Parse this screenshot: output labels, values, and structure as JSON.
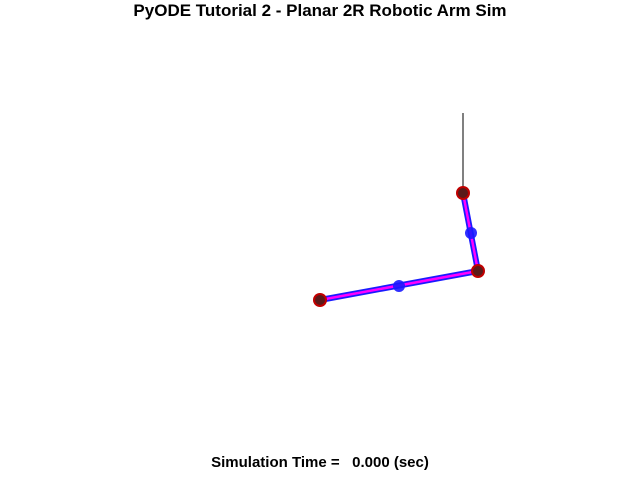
{
  "window": {
    "title": "PyODE Tutorial 2 - Planar 2R Robotic Arm Sim"
  },
  "status": {
    "time_label": "Simulation Time = ",
    "time_value": "  0.000",
    "time_unit": " (sec)"
  },
  "colors": {
    "background": "#ffffff",
    "text": "#000000",
    "tether_line": "#000000",
    "link_outline": "#1a1aff",
    "link_fill": "#ff00ff",
    "center_of_mass_marker": "#1a1aff",
    "joint_outer": "#c00000",
    "joint_inner": "#5a1a1a"
  },
  "icons": {
    "joint": "joint-circle-icon",
    "center_of_mass": "center-of-mass-dot-icon"
  }
}
